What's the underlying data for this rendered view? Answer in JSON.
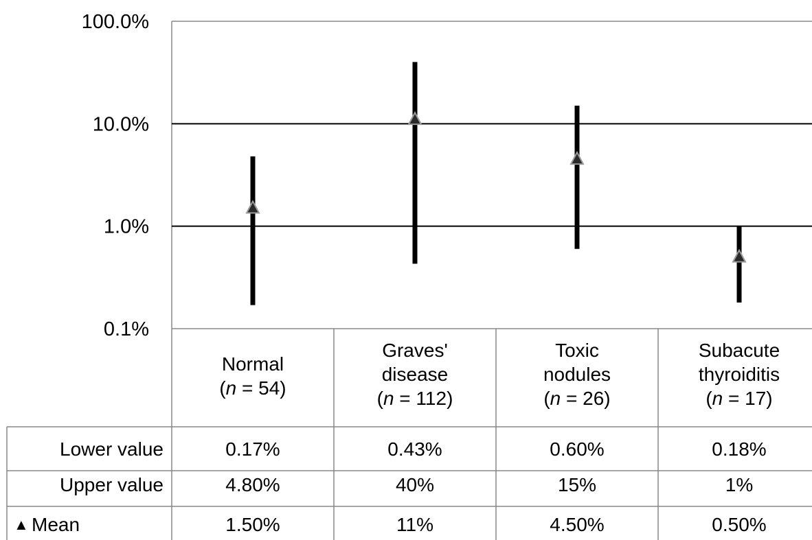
{
  "chart_data": {
    "type": "scatter",
    "yscale": "log",
    "ylim": [
      0.1,
      100
    ],
    "grid": true,
    "y_tick_labels": [
      "100.0%",
      "10.0%",
      "1.0%",
      "0.1%"
    ],
    "categories": [
      {
        "line1": "Normal",
        "line2": "",
        "n": "54"
      },
      {
        "line1": "Graves'",
        "line2": "disease",
        "n": "112"
      },
      {
        "line1": "Toxic",
        "line2": "nodules",
        "n": "26"
      },
      {
        "line1": "Subacute",
        "line2": "thyroiditis",
        "n": "17"
      }
    ],
    "n_prefix": "n",
    "n_equals": " = ",
    "lower": [
      0.17,
      0.43,
      0.6,
      0.18
    ],
    "upper": [
      4.8,
      40,
      15,
      1
    ],
    "mean": [
      1.5,
      11,
      4.5,
      0.5
    ],
    "table": {
      "row_labels": [
        "Lower value",
        "Upper value",
        "Mean"
      ],
      "mean_marker": "▲",
      "lower_text": [
        "0.17%",
        "0.43%",
        "0.60%",
        "0.18%"
      ],
      "upper_text": [
        "4.80%",
        "40%",
        "15%",
        "1%"
      ],
      "mean_text": [
        "1.50%",
        "11%",
        "4.50%",
        "0.50%"
      ]
    }
  }
}
